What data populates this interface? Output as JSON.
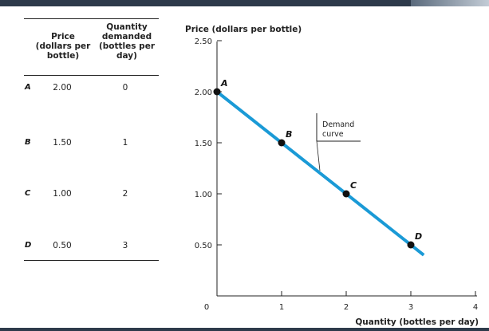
{
  "table": {
    "headers": {
      "price": "Price\n(dollars per\nbottle)",
      "quantity": "Quantity\ndemanded\n(bottles per\nday)"
    },
    "rows": [
      {
        "label": "A",
        "price": "2.00",
        "quantity": "0"
      },
      {
        "label": "B",
        "price": "1.50",
        "quantity": "1"
      },
      {
        "label": "C",
        "price": "1.00",
        "quantity": "2"
      },
      {
        "label": "D",
        "price": "0.50",
        "quantity": "3"
      }
    ]
  },
  "chart_data": {
    "type": "line",
    "ylabel": "Price (dollars per bottle)",
    "xlabel": "Quantity (bottles per day)",
    "xlim": [
      0,
      4
    ],
    "ylim": [
      0,
      2.5
    ],
    "x_ticks": [
      "0",
      "1",
      "2",
      "3",
      "4"
    ],
    "y_ticks": [
      "0.50",
      "1.00",
      "1.50",
      "2.00",
      "2.50"
    ],
    "series": [
      {
        "name": "Demand curve",
        "x": [
          0,
          1,
          2,
          3
        ],
        "y": [
          2.0,
          1.5,
          1.0,
          0.5
        ],
        "point_labels": [
          "A",
          "B",
          "C",
          "D"
        ]
      }
    ],
    "annotation": "Demand\ncurve",
    "line_color": "#1a9ad6",
    "point_color": "#111111"
  }
}
